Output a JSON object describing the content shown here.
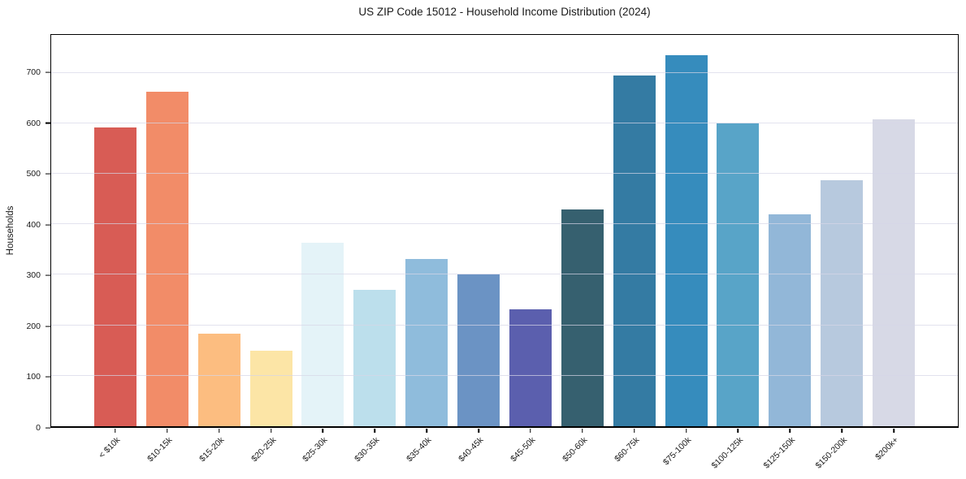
{
  "chart_data": {
    "type": "bar",
    "title": "US ZIP Code 15012 - Household Income Distribution (2024)",
    "xlabel": "",
    "ylabel": "Households",
    "categories": [
      "< $10k",
      "$10-15k",
      "$15-20k",
      "$20-25k",
      "$25-30k",
      "$30-35k",
      "$35-40k",
      "$40-45k",
      "$45-50k",
      "$50-60k",
      "$60-75k",
      "$75-100k",
      "$100-125k",
      "$125-150k",
      "$150-200k",
      "$200k+"
    ],
    "values": [
      592,
      662,
      184,
      150,
      363,
      270,
      331,
      300,
      232,
      430,
      695,
      735,
      600,
      420,
      488,
      608
    ],
    "bar_colors": [
      "#d85c55",
      "#f28c68",
      "#fcbd80",
      "#fce5a6",
      "#e4f3f8",
      "#bcdfec",
      "#8fbcdc",
      "#6b93c4",
      "#5b5fae",
      "#36606f",
      "#347ba3",
      "#368cbd",
      "#58a4c8",
      "#92b7d8",
      "#b7c9de",
      "#d7d9e6"
    ],
    "ylim": [
      0,
      775
    ],
    "yticks": [
      0,
      100,
      200,
      300,
      400,
      500,
      600,
      700
    ],
    "grid": "horizontal",
    "legend": "none",
    "axis_color": "#000000",
    "text_color": "#1a1a1a",
    "background": "#ffffff"
  }
}
